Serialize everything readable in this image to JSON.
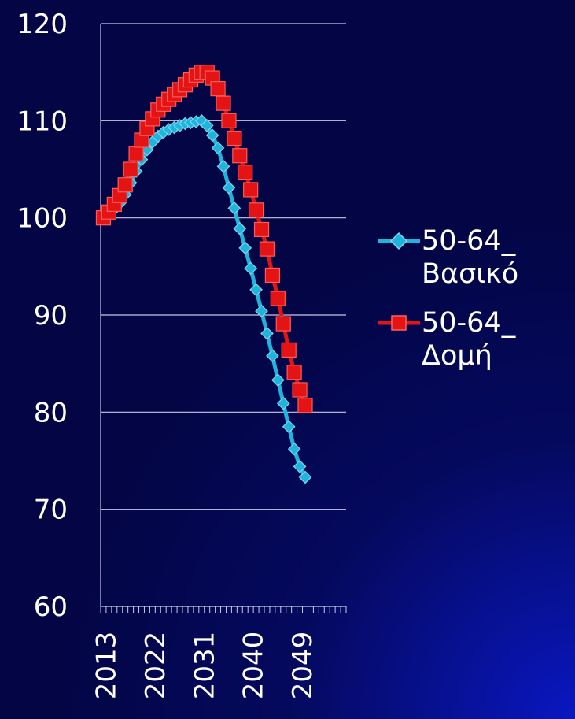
{
  "chart_data": {
    "type": "line",
    "title": "",
    "xlabel": "",
    "ylabel": "",
    "x": [
      2013,
      2014,
      2015,
      2016,
      2017,
      2018,
      2019,
      2020,
      2021,
      2022,
      2023,
      2024,
      2025,
      2026,
      2027,
      2028,
      2029,
      2030,
      2031,
      2032,
      2033,
      2034,
      2035,
      2036,
      2037,
      2038,
      2039,
      2040,
      2041,
      2042,
      2043,
      2044,
      2045,
      2046,
      2047,
      2048,
      2049,
      2050
    ],
    "x_tick_labels": [
      "2013",
      "2022",
      "2031",
      "2040",
      "2049"
    ],
    "y_tick_labels": [
      "60",
      "70",
      "80",
      "90",
      "100",
      "110",
      "120"
    ],
    "xlim": [
      2012.5,
      2057.5
    ],
    "ylim": [
      60,
      120
    ],
    "grid": "horizontal",
    "legend_position": "right",
    "series": [
      {
        "name": "50-64_Βασικό",
        "color": "#1fb4dc",
        "marker": "diamond",
        "values": [
          100,
          100.4,
          100.9,
          101.5,
          102.4,
          103.6,
          104.8,
          106.0,
          107.0,
          107.8,
          108.4,
          108.8,
          109.1,
          109.3,
          109.5,
          109.7,
          109.8,
          109.9,
          110.0,
          109.5,
          108.5,
          107.2,
          105.3,
          103.1,
          101.0,
          98.9,
          96.9,
          94.8,
          92.6,
          90.4,
          88.1,
          85.8,
          83.3,
          80.9,
          78.5,
          76.2,
          74.4,
          73.3
        ]
      },
      {
        "name": "50-64_Δομή",
        "color": "#e41414",
        "marker": "square",
        "values": [
          100,
          100.6,
          101.4,
          102.3,
          103.4,
          105.0,
          106.6,
          108.0,
          109.2,
          110.2,
          111.1,
          111.7,
          112.2,
          112.7,
          113.2,
          113.7,
          114.2,
          114.7,
          115.0,
          115.0,
          114.4,
          113.3,
          111.8,
          110.0,
          108.2,
          106.4,
          104.7,
          102.9,
          100.8,
          98.8,
          96.8,
          94.1,
          91.7,
          89.1,
          86.4,
          84.1,
          82.3,
          80.7
        ]
      }
    ]
  }
}
